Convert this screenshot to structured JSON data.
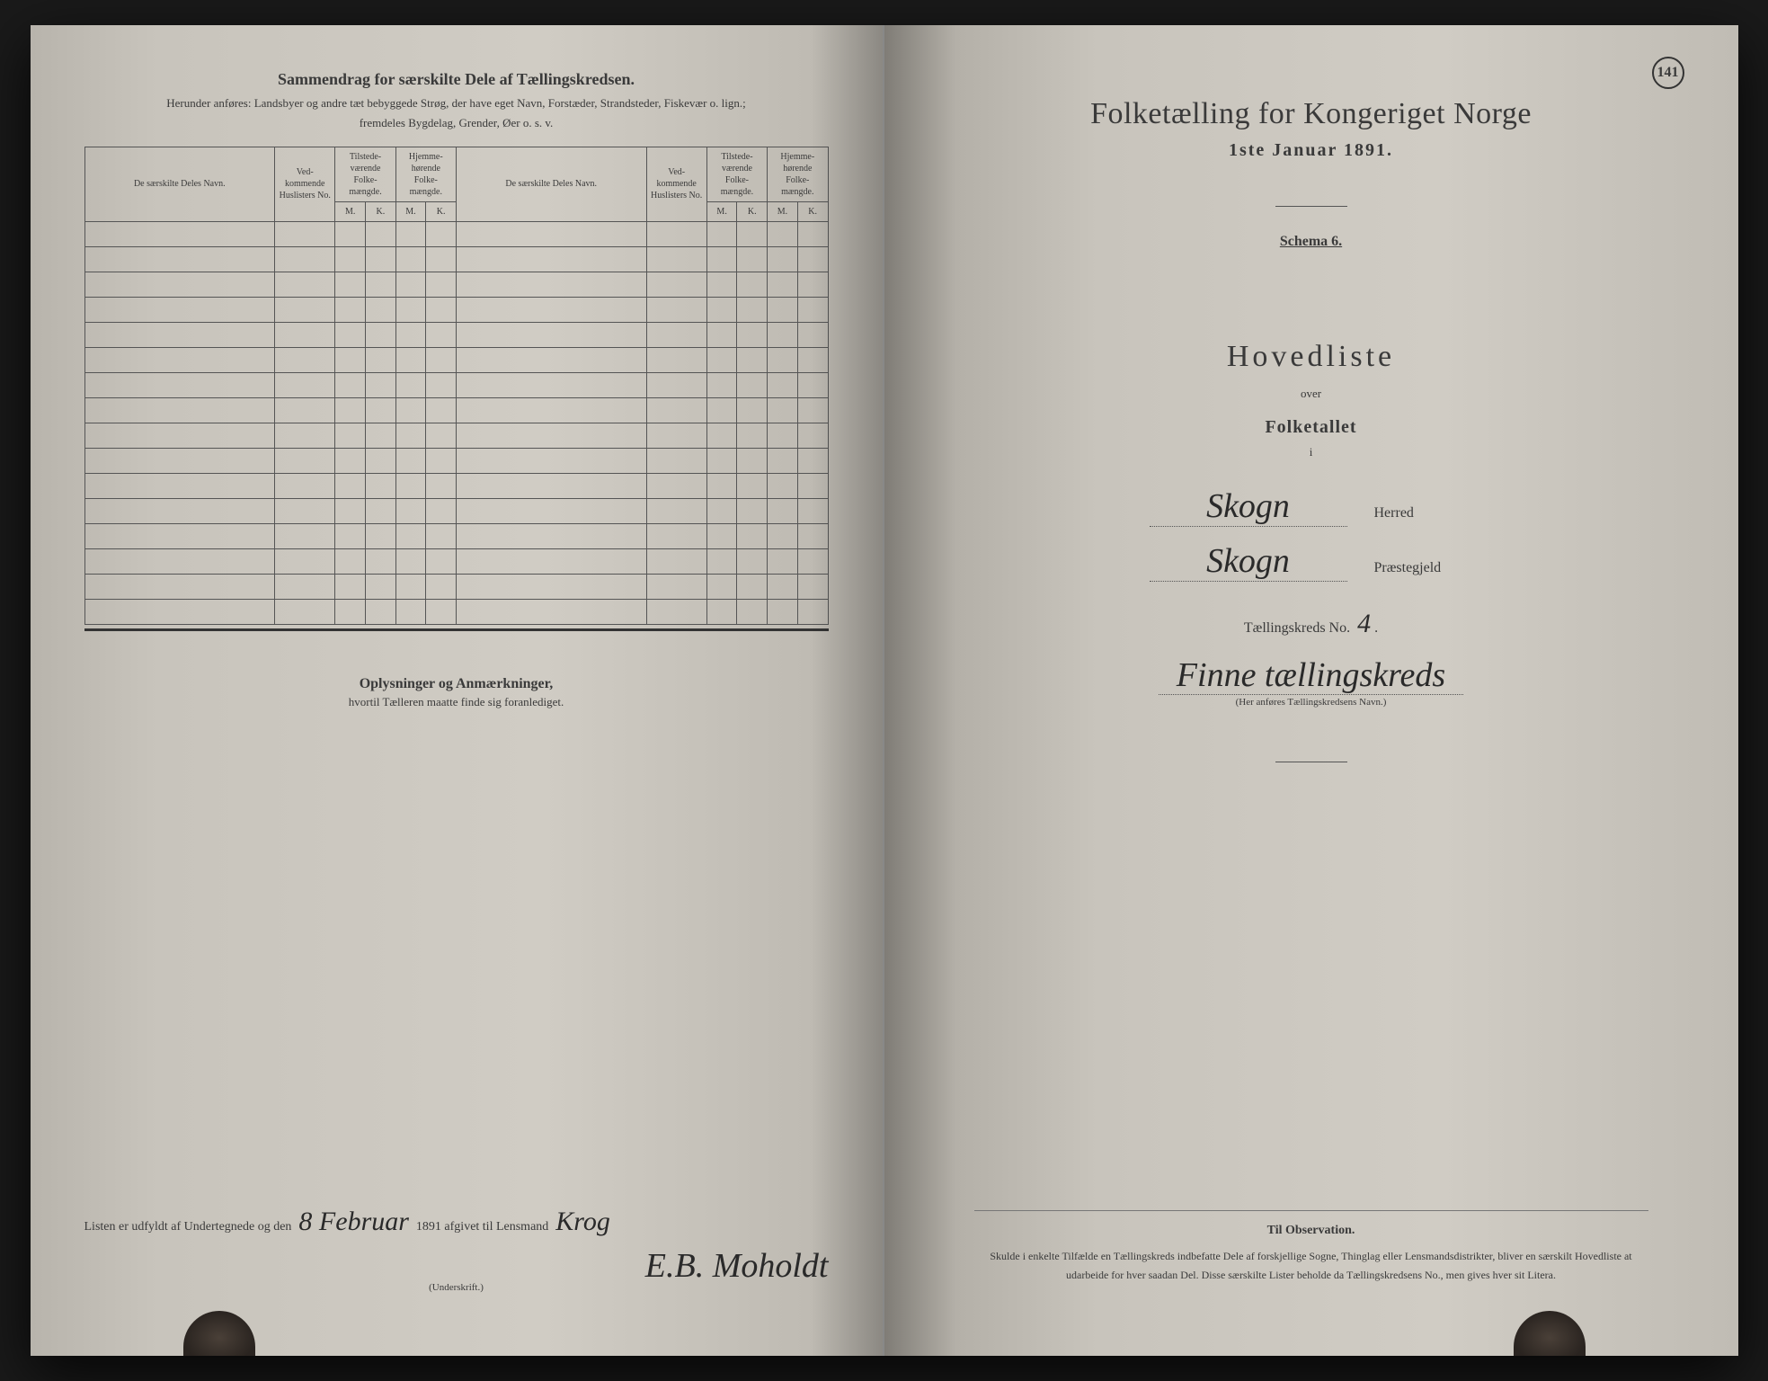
{
  "pageNumber": "141",
  "leftPage": {
    "title": "Sammendrag for særskilte Dele af Tællingskredsen.",
    "subtitle": "Herunder anføres: Landsbyer og andre tæt bebyggede Strøg, der have eget Navn, Forstæder, Strandsteder, Fiskevær o. lign.;",
    "subtitle2": "fremdeles Bygdelag, Grender, Øer o. s. v.",
    "columns": {
      "name": "De særskilte Deles Navn.",
      "huslister": "Ved-kommende Huslisters No.",
      "tilstede": "Tilstede-værende Folke-mængde.",
      "hjemme": "Hjemme-hørende Folke-mængde.",
      "m": "M.",
      "k": "K."
    },
    "rowCount": 16,
    "notes": {
      "title": "Oplysninger og Anmærkninger,",
      "sub": "hvortil Tælleren maatte finde sig foranlediget."
    },
    "signature": {
      "prefix": "Listen er udfyldt af Undertegnede og den",
      "date_hand": "8 Februar",
      "year": "1891 afgivet til Lensmand",
      "lensmand": "Krog",
      "signer": "E.B. Moholdt",
      "caption": "(Underskrift.)"
    }
  },
  "rightPage": {
    "title": "Folketælling for Kongeriget Norge",
    "date": "1ste Januar 1891.",
    "schema": "Schema 6.",
    "hovedliste": "Hovedliste",
    "over": "over",
    "folketallet": "Folketallet",
    "i": "i",
    "herred_value": "Skogn",
    "herred_label": "Herred",
    "praestegjeld_value": "Skogn",
    "praestegjeld_label": "Præstegjeld",
    "kreds_label": "Tællingskreds No.",
    "kreds_no": "4",
    "kreds_name": "Finne tællingskreds",
    "kreds_caption": "(Her anføres Tællingskredsens Navn.)",
    "observation": {
      "title": "Til Observation.",
      "text": "Skulde i enkelte Tilfælde en Tællingskreds indbefatte Dele af forskjellige Sogne, Thinglag eller Lensmandsdistrikter, bliver en særskilt Hovedliste at udarbeide for hver saadan Del. Disse særskilte Lister beholde da Tællingskredsens No., men gives hver sit Litera."
    }
  }
}
